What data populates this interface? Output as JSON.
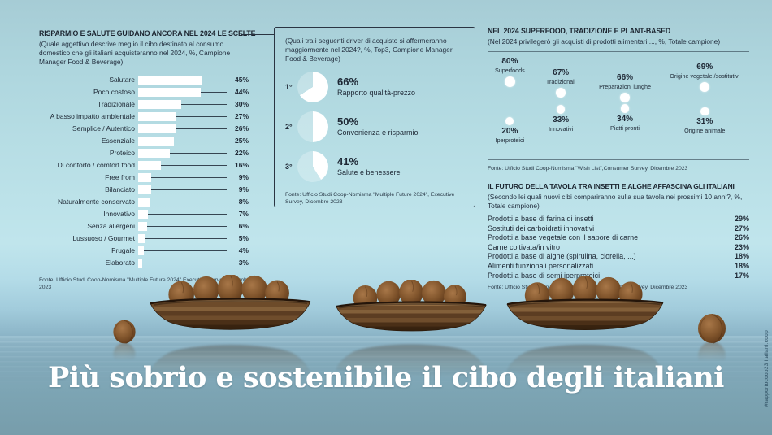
{
  "colors": {
    "background_teal": "#b6dde4",
    "water_blue": "#7ca4b3",
    "ink_navy": "#1e2835",
    "bar_white": "#ffffff",
    "walnut_brown": "#7b4f2c",
    "boat_wood": "#5c3d22"
  },
  "left_panel": {
    "title": "RISPARMIO E SALUTE GUIDANO ANCORA NEL 2024 LE SCELTE",
    "subtitle": "(Quale aggettivo descrive meglio il cibo destinato al consumo domestico che gli italiani acquisteranno nel 2024, %, Campione Manager Food & Beverage)",
    "bars": [
      {
        "label": "Salutare",
        "value": 45
      },
      {
        "label": "Poco costoso",
        "value": 44
      },
      {
        "label": "Tradizionale",
        "value": 30
      },
      {
        "label": "A basso impatto ambientale",
        "value": 27
      },
      {
        "label": "Semplice / Autentico",
        "value": 26
      },
      {
        "label": "Essenziale",
        "value": 25
      },
      {
        "label": "Proteico",
        "value": 22
      },
      {
        "label": "Di conforto / comfort food",
        "value": 16
      },
      {
        "label": "Free from",
        "value": 9
      },
      {
        "label": "Bilanciato",
        "value": 9
      },
      {
        "label": "Naturalmente conservato",
        "value": 8
      },
      {
        "label": "Innovativo",
        "value": 7
      },
      {
        "label": "Senza allergeni",
        "value": 6
      },
      {
        "label": "Lussuoso / Gourmet",
        "value": 5
      },
      {
        "label": "Frugale",
        "value": 4
      },
      {
        "label": "Elaborato",
        "value": 3
      }
    ],
    "fonte": "Fonte: Ufficio Studi Coop-Nomisma \"Multiple Future 2024\",Executive Survey, Dicembre 2023"
  },
  "middle_panel": {
    "subtitle": "(Quali tra i seguenti driver di acquisto si affermeranno maggiormente nel 2024?, %, Top3, Campione Manager Food & Beverage)",
    "drivers": [
      {
        "rank": "1°",
        "pct": "66%",
        "value": 66,
        "label": "Rapporto qualità-prezzo"
      },
      {
        "rank": "2°",
        "pct": "50%",
        "value": 50,
        "label": "Convenienza e risparmio"
      },
      {
        "rank": "3°",
        "pct": "41%",
        "value": 41,
        "label": "Salute e benessere"
      }
    ],
    "fonte": "Fonte: Ufficio Studi Coop-Nomisma \"Multiple Future 2024\", Executive Survey, Dicembre 2023"
  },
  "right_panel": {
    "top": {
      "title": "NEL 2024 SUPERFOOD, TRADIZIONE E PLANT-BASED",
      "subtitle": "(Nel 2024 privilegerò gli acquisti di prodotti alimentari ..., %, Totale campione)",
      "row1": [
        {
          "pct": "80%",
          "value": 80,
          "label": "Superfoods"
        },
        {
          "pct": "67%",
          "value": 67,
          "label": "Tradizionali"
        },
        {
          "pct": "66%",
          "value": 66,
          "label": "Preparazioni lunghe"
        },
        {
          "pct": "69%",
          "value": 69,
          "label": "Origine vegetale /sostitutivi"
        }
      ],
      "row2": [
        {
          "pct": "20%",
          "value": 20,
          "label": "Iperproteici"
        },
        {
          "pct": "33%",
          "value": 33,
          "label": "Innovativi"
        },
        {
          "pct": "34%",
          "value": 34,
          "label": "Piatti pronti"
        },
        {
          "pct": "31%",
          "value": 31,
          "label": "Origine animale"
        }
      ],
      "fonte": "Fonte: Ufficio Studi Coop-Nomisma \"Wish List\",Consumer Survey, Dicembre 2023"
    },
    "bottom": {
      "title": "IL FUTURO DELLA TAVOLA TRA INSETTI E ALGHE AFFASCINA GLI ITALIANI",
      "subtitle": "(Secondo lei quali nuovi cibi compariranno sulla sua tavola nei prossimi 10 anni?, %, Totale campione)",
      "items": [
        {
          "label": "Prodotti a base di farina di insetti",
          "pct": "29%"
        },
        {
          "label": "Sostituti dei carboidrati innovativi",
          "pct": "27%"
        },
        {
          "label": "Prodotti a base vegetale con il sapore di carne",
          "pct": "26%"
        },
        {
          "label": "Carne coltivata/in vitro",
          "pct": "23%"
        },
        {
          "label": "Prodotti a base di alghe (spirulina, clorella, ...)",
          "pct": "18%"
        },
        {
          "label": "Alimenti funzionali personalizzati",
          "pct": "18%"
        },
        {
          "label": "Prodotti a base di semi iperproteici",
          "pct": "17%"
        }
      ],
      "fonte": "Fonte: Ufficio Studi Coop-Nomisma \"Wish List\",Consumer Survey, Dicembre 2023"
    }
  },
  "footer": {
    "headline": "Più sobrio e sostenibile il cibo degli italiani",
    "watermark": "#rapportocoop23 italiani.coop"
  },
  "chart_data": [
    {
      "type": "bar",
      "title": "RISPARMIO E SALUTE GUIDANO ANCORA NEL 2024 LE SCELTE",
      "xlabel": "",
      "ylabel": "%",
      "xlim": [
        0,
        50
      ],
      "categories": [
        "Salutare",
        "Poco costoso",
        "Tradizionale",
        "A basso impatto ambientale",
        "Semplice / Autentico",
        "Essenziale",
        "Proteico",
        "Di conforto / comfort food",
        "Free from",
        "Bilanciato",
        "Naturalmente conservato",
        "Innovativo",
        "Senza allergeni",
        "Lussuoso / Gourmet",
        "Frugale",
        "Elaborato"
      ],
      "values": [
        45,
        44,
        30,
        27,
        26,
        25,
        22,
        16,
        9,
        9,
        8,
        7,
        6,
        5,
        4,
        3
      ]
    },
    {
      "type": "pie",
      "title": "Driver di acquisto 2024 (Top3, Campione Manager Food & Beverage)",
      "categories": [
        "Rapporto qualità-prezzo",
        "Convenienza e risparmio",
        "Salute e benessere"
      ],
      "values": [
        66,
        50,
        41
      ]
    },
    {
      "type": "bar",
      "title": "NEL 2024 SUPERFOOD, TRADIZIONE E PLANT-BASED",
      "ylabel": "%",
      "ylim": [
        0,
        100
      ],
      "categories": [
        "Superfoods",
        "Tradizionali",
        "Preparazioni lunghe",
        "Origine vegetale /sostitutivi",
        "Iperproteici",
        "Innovativi",
        "Piatti pronti",
        "Origine animale"
      ],
      "values": [
        80,
        67,
        66,
        69,
        20,
        33,
        34,
        31
      ]
    },
    {
      "type": "bar",
      "title": "IL FUTURO DELLA TAVOLA TRA INSETTI E ALGHE AFFASCINA GLI ITALIANI",
      "ylabel": "%",
      "ylim": [
        0,
        30
      ],
      "categories": [
        "Prodotti a base di farina di insetti",
        "Sostituti dei carboidrati innovativi",
        "Prodotti a base vegetale con il sapore di carne",
        "Carne coltivata/in vitro",
        "Prodotti a base di alghe (spirulina, clorella, ...)",
        "Alimenti funzionali personalizzati",
        "Prodotti a base di semi iperproteici"
      ],
      "values": [
        29,
        27,
        26,
        23,
        18,
        18,
        17
      ]
    }
  ]
}
